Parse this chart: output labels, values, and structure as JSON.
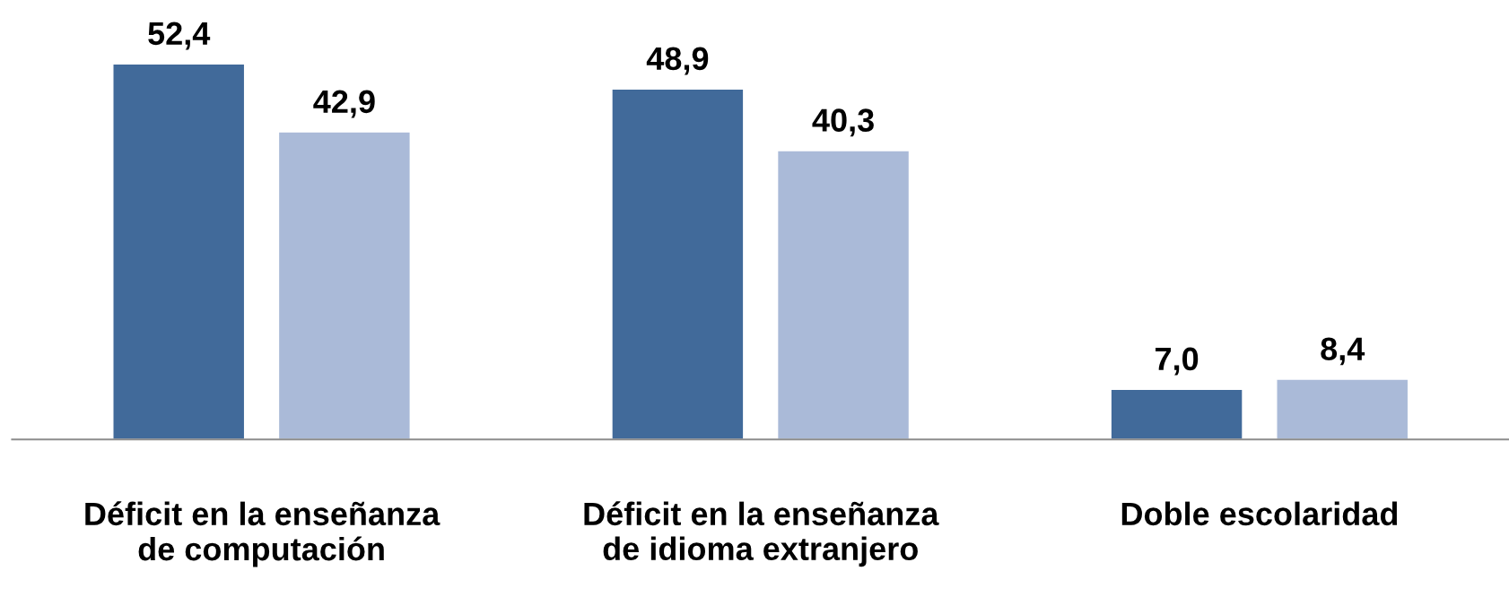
{
  "chart_data": {
    "type": "bar",
    "categories": [
      "Déficit en la enseñanza\nde computación",
      "Déficit en la enseñanza\nde idioma extranjero",
      "Doble escolaridad"
    ],
    "series": [
      {
        "color": "#416a9a",
        "values": [
          52.4,
          48.9,
          7.0
        ],
        "value_labels": [
          "52,4",
          "48,9",
          "7,0"
        ]
      },
      {
        "color": "#aabad8",
        "values": [
          42.9,
          40.3,
          8.4
        ],
        "value_labels": [
          "42,9",
          "40,3",
          "8,4"
        ]
      }
    ],
    "grid": false,
    "tick_labels": "x"
  }
}
